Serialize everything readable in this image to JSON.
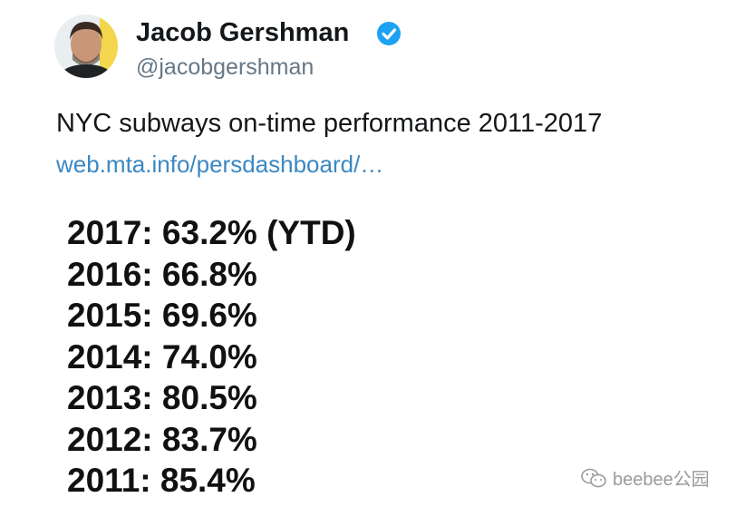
{
  "author": {
    "name": "Jacob Gershman",
    "handle": "@jacobgershman"
  },
  "tweet": {
    "text": "NYC subways on-time performance 2011-2017",
    "link": "web.mta.info/persdashboard/…",
    "stats": [
      "2017: 63.2% (YTD)",
      "2016: 66.8%",
      "2015: 69.6%",
      "2014: 74.0%",
      "2013: 80.5%",
      "2012: 83.7%",
      "2011: 85.4%"
    ]
  },
  "watermark": "beebee公园"
}
